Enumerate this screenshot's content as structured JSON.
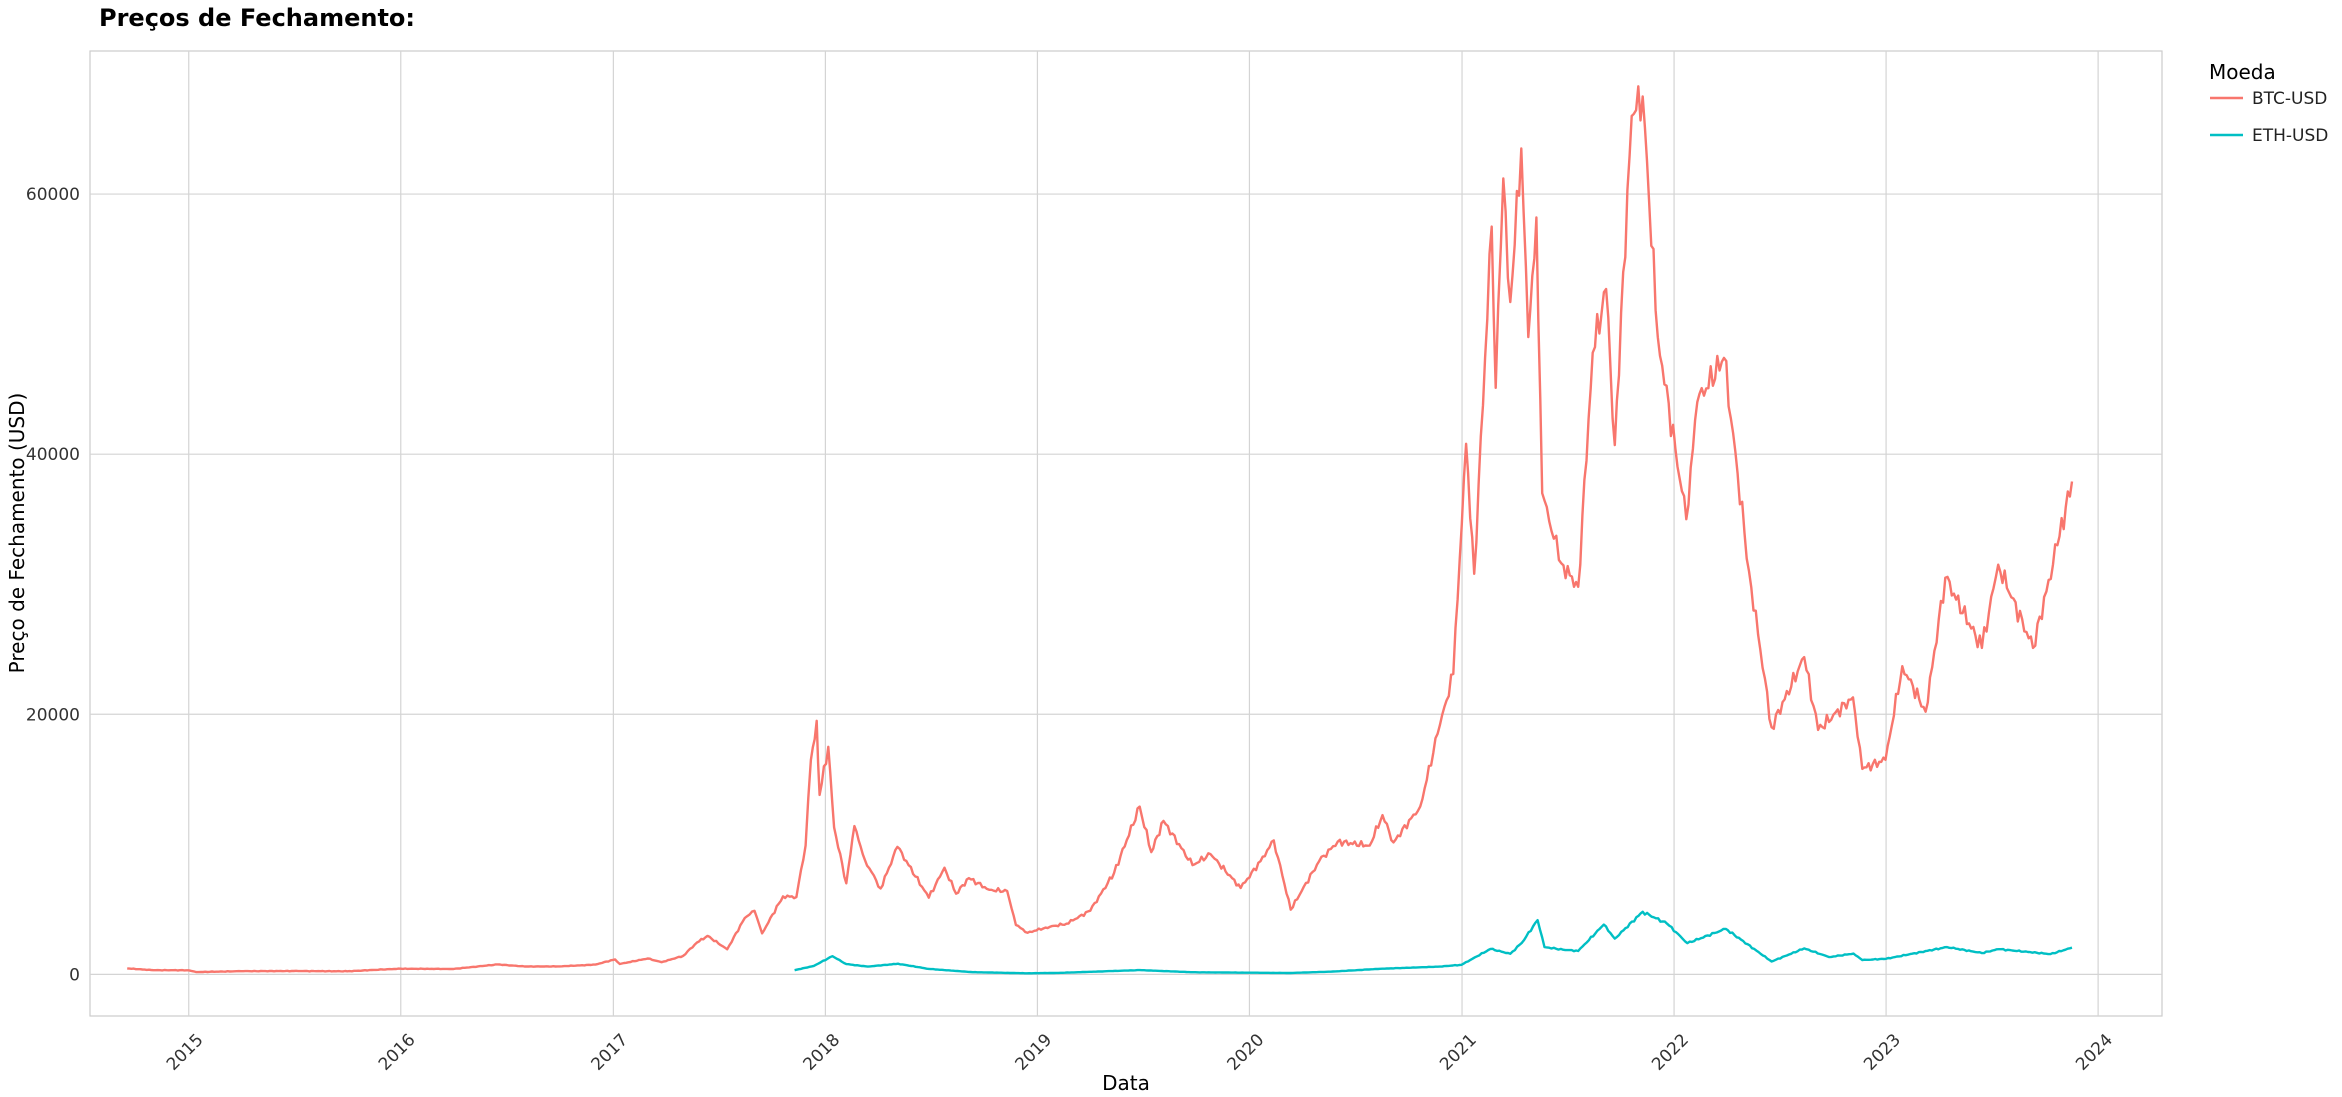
{
  "chart_data": {
    "type": "line",
    "title": "Preços de Fechamento:",
    "xlabel": "Data",
    "ylabel": "Preço de Fechamento (USD)",
    "x_type": "date",
    "xlim": [
      "2014-07-15",
      "2024-04-20"
    ],
    "ylim": [
      -3200,
      71000
    ],
    "x_ticks": [
      "2015",
      "2016",
      "2017",
      "2018",
      "2019",
      "2020",
      "2021",
      "2022",
      "2023",
      "2024"
    ],
    "y_ticks": [
      0,
      20000,
      40000,
      60000
    ],
    "y_tick_labels": [
      "0",
      "20000",
      "40000",
      "60000"
    ],
    "grid": true,
    "legend": {
      "title": "Moeda",
      "position": "right"
    },
    "series": [
      {
        "name": "BTC-USD",
        "color": "#F8766D",
        "points": [
          [
            "2014-09-17",
            457
          ],
          [
            "2014-11-01",
            325
          ],
          [
            "2015-01-01",
            314
          ],
          [
            "2015-01-14",
            178
          ],
          [
            "2015-04-01",
            247
          ],
          [
            "2015-07-01",
            258
          ],
          [
            "2015-10-01",
            237
          ],
          [
            "2015-12-01",
            378
          ],
          [
            "2016-01-01",
            434
          ],
          [
            "2016-04-01",
            417
          ],
          [
            "2016-06-16",
            766
          ],
          [
            "2016-08-01",
            606
          ],
          [
            "2016-10-01",
            614
          ],
          [
            "2016-12-01",
            753
          ],
          [
            "2017-01-04",
            1154
          ],
          [
            "2017-01-12",
            799
          ],
          [
            "2017-03-01",
            1222
          ],
          [
            "2017-03-25",
            937
          ],
          [
            "2017-05-01",
            1421
          ],
          [
            "2017-05-25",
            2450
          ],
          [
            "2017-06-12",
            2960
          ],
          [
            "2017-07-16",
            1929
          ],
          [
            "2017-08-15",
            4326
          ],
          [
            "2017-09-01",
            4892
          ],
          [
            "2017-09-14",
            3154
          ],
          [
            "2017-10-20",
            6000
          ],
          [
            "2017-11-12",
            5950
          ],
          [
            "2017-11-28",
            9900
          ],
          [
            "2017-12-07",
            16500
          ],
          [
            "2017-12-17",
            19497
          ],
          [
            "2017-12-22",
            13800
          ],
          [
            "2018-01-06",
            17500
          ],
          [
            "2018-01-16",
            11300
          ],
          [
            "2018-02-06",
            7000
          ],
          [
            "2018-02-20",
            11400
          ],
          [
            "2018-03-10",
            8800
          ],
          [
            "2018-04-06",
            6600
          ],
          [
            "2018-05-05",
            9800
          ],
          [
            "2018-06-28",
            5900
          ],
          [
            "2018-07-25",
            8200
          ],
          [
            "2018-08-14",
            6200
          ],
          [
            "2018-09-05",
            7400
          ],
          [
            "2018-10-10",
            6500
          ],
          [
            "2018-11-10",
            6400
          ],
          [
            "2018-11-25",
            3800
          ],
          [
            "2018-12-15",
            3200
          ],
          [
            "2019-01-15",
            3600
          ],
          [
            "2019-02-20",
            3900
          ],
          [
            "2019-04-02",
            4900
          ],
          [
            "2019-05-13",
            7800
          ],
          [
            "2019-06-26",
            12900
          ],
          [
            "2019-07-16",
            9400
          ],
          [
            "2019-08-06",
            11800
          ],
          [
            "2019-09-25",
            8400
          ],
          [
            "2019-10-26",
            9250
          ],
          [
            "2019-12-17",
            6640
          ],
          [
            "2020-01-20",
            8700
          ],
          [
            "2020-02-12",
            10300
          ],
          [
            "2020-03-12",
            4970
          ],
          [
            "2020-04-30",
            8700
          ],
          [
            "2020-06-01",
            10200
          ],
          [
            "2020-07-26",
            9900
          ],
          [
            "2020-08-17",
            12250
          ],
          [
            "2020-09-05",
            10150
          ],
          [
            "2020-10-21",
            12900
          ],
          [
            "2020-11-20",
            18500
          ],
          [
            "2020-12-17",
            23100
          ],
          [
            "2021-01-08",
            40800
          ],
          [
            "2021-01-22",
            30800
          ],
          [
            "2021-02-21",
            57500
          ],
          [
            "2021-02-28",
            45100
          ],
          [
            "2021-03-13",
            61200
          ],
          [
            "2021-03-25",
            51700
          ],
          [
            "2021-04-13",
            63500
          ],
          [
            "2021-04-25",
            49000
          ],
          [
            "2021-05-09",
            58200
          ],
          [
            "2021-05-19",
            37000
          ],
          [
            "2021-06-08",
            33500
          ],
          [
            "2021-06-21",
            31600
          ],
          [
            "2021-07-20",
            29800
          ],
          [
            "2021-08-14",
            47800
          ],
          [
            "2021-09-06",
            52700
          ],
          [
            "2021-09-21",
            40700
          ],
          [
            "2021-10-20",
            66000
          ],
          [
            "2021-11-08",
            67500
          ],
          [
            "2021-12-04",
            49000
          ],
          [
            "2022-01-22",
            35000
          ],
          [
            "2022-02-10",
            44000
          ],
          [
            "2022-03-28",
            47400
          ],
          [
            "2022-05-10",
            31000
          ],
          [
            "2022-06-18",
            19000
          ],
          [
            "2022-08-13",
            24400
          ],
          [
            "2022-09-06",
            18800
          ],
          [
            "2022-11-05",
            21300
          ],
          [
            "2022-11-21",
            15800
          ],
          [
            "2022-12-31",
            16500
          ],
          [
            "2023-01-29",
            23700
          ],
          [
            "2023-03-10",
            20200
          ],
          [
            "2023-04-13",
            30500
          ],
          [
            "2023-06-15",
            25100
          ],
          [
            "2023-07-13",
            31500
          ],
          [
            "2023-09-11",
            25100
          ],
          [
            "2023-10-23",
            33000
          ],
          [
            "2023-11-17",
            37900
          ]
        ]
      },
      {
        "name": "ETH-USD",
        "color": "#00BFC4",
        "points": [
          [
            "2017-11-09",
            320
          ],
          [
            "2017-12-12",
            650
          ],
          [
            "2018-01-13",
            1400
          ],
          [
            "2018-02-06",
            790
          ],
          [
            "2018-03-15",
            600
          ],
          [
            "2018-05-06",
            820
          ],
          [
            "2018-06-28",
            420
          ],
          [
            "2018-09-12",
            170
          ],
          [
            "2018-12-14",
            84
          ],
          [
            "2019-02-10",
            120
          ],
          [
            "2019-06-26",
            330
          ],
          [
            "2019-09-26",
            165
          ],
          [
            "2019-12-31",
            129
          ],
          [
            "2020-03-12",
            110
          ],
          [
            "2020-05-20",
            210
          ],
          [
            "2020-08-13",
            430
          ],
          [
            "2020-11-24",
            600
          ],
          [
            "2020-12-31",
            737
          ],
          [
            "2021-02-19",
            1960
          ],
          [
            "2021-03-25",
            1580
          ],
          [
            "2021-04-14",
            2430
          ],
          [
            "2021-05-11",
            4170
          ],
          [
            "2021-05-23",
            2100
          ],
          [
            "2021-06-24",
            1900
          ],
          [
            "2021-07-20",
            1800
          ],
          [
            "2021-09-02",
            3830
          ],
          [
            "2021-09-21",
            2750
          ],
          [
            "2021-11-08",
            4810
          ],
          [
            "2021-12-20",
            3900
          ],
          [
            "2022-01-24",
            2400
          ],
          [
            "2022-03-31",
            3500
          ],
          [
            "2022-06-18",
            990
          ],
          [
            "2022-08-13",
            2000
          ],
          [
            "2022-09-25",
            1330
          ],
          [
            "2022-11-06",
            1600
          ],
          [
            "2022-11-21",
            1100
          ],
          [
            "2023-01-01",
            1200
          ],
          [
            "2023-04-16",
            2100
          ],
          [
            "2023-06-15",
            1640
          ],
          [
            "2023-07-14",
            1940
          ],
          [
            "2023-10-11",
            1560
          ],
          [
            "2023-11-17",
            2050
          ]
        ]
      }
    ]
  }
}
